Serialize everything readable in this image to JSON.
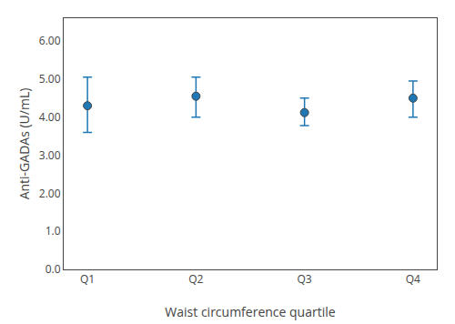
{
  "chart_data": {
    "type": "scatter",
    "xlabel": "Waist circumference quartile",
    "ylabel": "Anti-GADAs (U/mL)",
    "categories": [
      "Q1",
      "Q2",
      "Q3",
      "Q4"
    ],
    "values": [
      4.3,
      4.55,
      4.12,
      4.5
    ],
    "error_lower": [
      0.7,
      0.55,
      0.34,
      0.5
    ],
    "error_upper": [
      0.75,
      0.5,
      0.38,
      0.45
    ],
    "ylim": [
      0.0,
      6.6
    ],
    "yticks": [
      {
        "value": 0.0,
        "label": "0.0"
      },
      {
        "value": 1.0,
        "label": "1.0"
      },
      {
        "value": 2.0,
        "label": "2.00"
      },
      {
        "value": 3.0,
        "label": "3.00"
      },
      {
        "value": 4.0,
        "label": "4.00"
      },
      {
        "value": 5.0,
        "label": "5.00"
      },
      {
        "value": 6.0,
        "label": "6.00"
      }
    ],
    "grid": false,
    "marker": "circle"
  }
}
